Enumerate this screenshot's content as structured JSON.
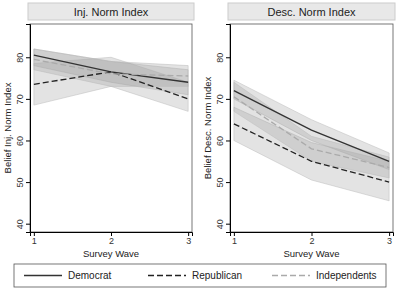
{
  "chart_data": [
    {
      "type": "line",
      "title": "Inj. Norm Index",
      "x_label": "Survey Wave",
      "y_label": "Belief Inj. Norm Index",
      "x": [
        1,
        2,
        3
      ],
      "xlim": [
        0.95,
        3.05
      ],
      "xticks": [
        1,
        2,
        3
      ],
      "ylim": [
        38,
        88
      ],
      "yticks": [
        40,
        50,
        60,
        70,
        80
      ],
      "grid": false,
      "legend": "bottom",
      "series": [
        {
          "name": "Democrat",
          "color": "#333333",
          "line_style": "solid",
          "values": [
            80.5,
            76.5,
            74
          ],
          "lower": [
            78,
            74,
            71
          ],
          "upper": [
            82,
            79,
            77
          ]
        },
        {
          "name": "Republican",
          "color": "#222222",
          "line_style": "dashed",
          "values": [
            73.5,
            76.5,
            70
          ],
          "lower": [
            68.5,
            73,
            67
          ],
          "upper": [
            78.5,
            80,
            74
          ]
        },
        {
          "name": "Independents",
          "color": "#aaaaaa",
          "line_style": "dashed",
          "values": [
            79.5,
            76,
            75.5
          ],
          "lower": [
            77,
            73,
            73
          ],
          "upper": [
            82,
            79,
            78
          ]
        }
      ]
    },
    {
      "type": "line",
      "title": "Desc. Norm Index",
      "x_label": "Survey Wave",
      "y_label": "Belief Desc. Norm Index",
      "x": [
        1,
        2,
        3
      ],
      "xlim": [
        0.95,
        3.05
      ],
      "xticks": [
        1,
        2,
        3
      ],
      "ylim": [
        38,
        88
      ],
      "yticks": [
        40,
        50,
        60,
        70,
        80
      ],
      "grid": false,
      "series": [
        {
          "name": "Democrat",
          "color": "#333333",
          "line_style": "solid",
          "values": [
            72,
            62.5,
            55
          ],
          "lower": [
            70,
            60,
            53
          ],
          "upper": [
            74.5,
            65,
            57
          ]
        },
        {
          "name": "Republican",
          "color": "#222222",
          "line_style": "dashed",
          "values": [
            64,
            55,
            50
          ],
          "lower": [
            60,
            50.5,
            45.5
          ],
          "upper": [
            68,
            59.5,
            55
          ]
        },
        {
          "name": "Independents",
          "color": "#aaaaaa",
          "line_style": "dashed",
          "values": [
            70.5,
            58,
            53.5
          ],
          "lower": [
            67,
            55,
            51
          ],
          "upper": [
            74,
            61,
            56
          ]
        }
      ]
    }
  ]
}
